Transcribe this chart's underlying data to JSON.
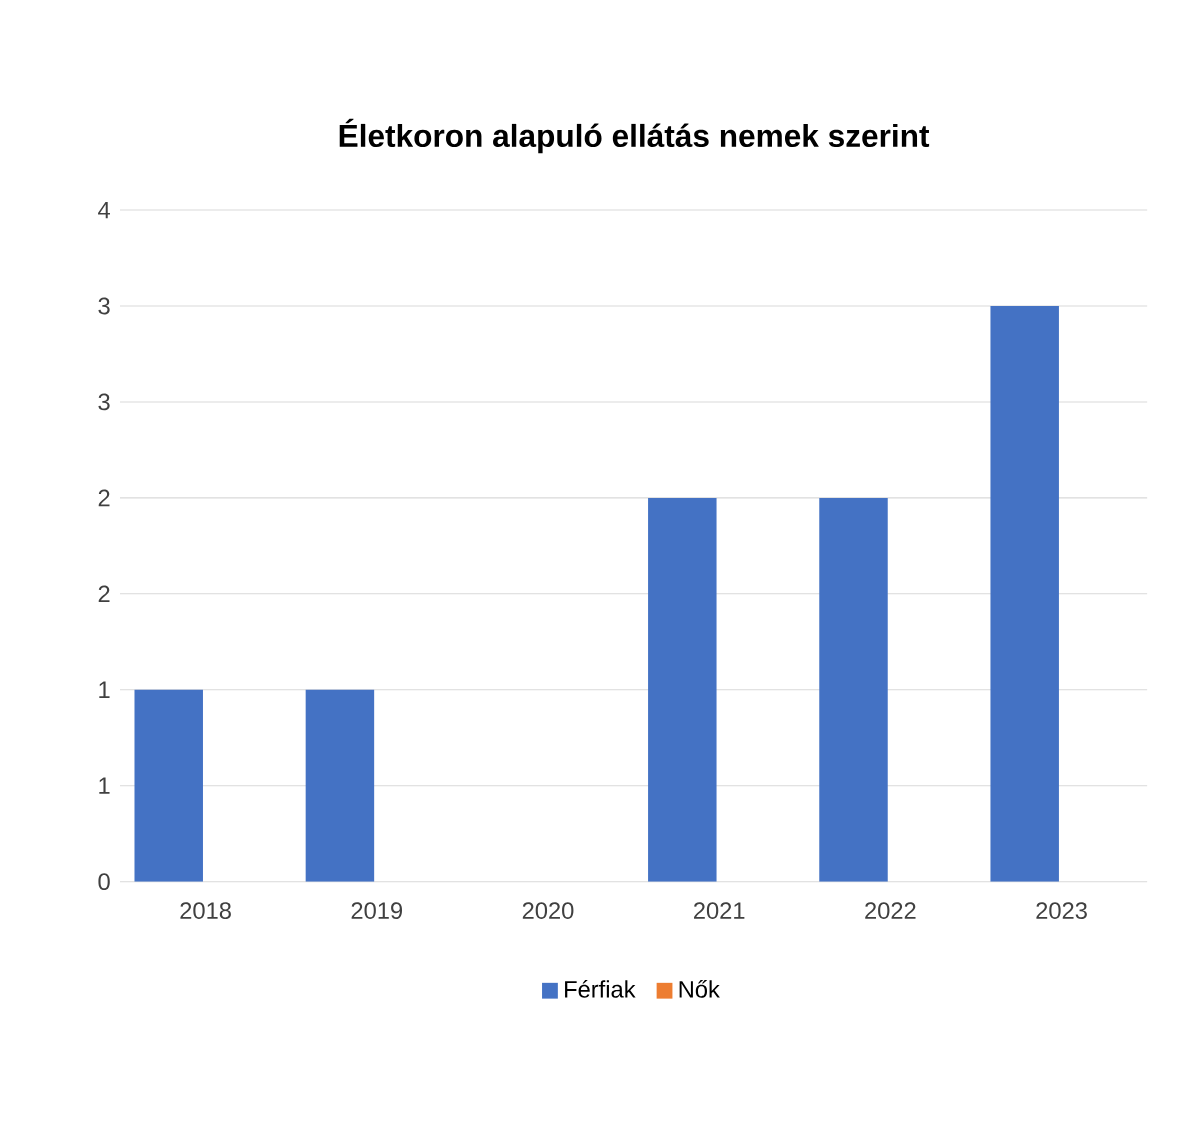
{
  "chart_data": {
    "type": "bar",
    "title": "Életkoron alapuló ellátás nemek szerint",
    "categories": [
      "2018",
      "2019",
      "2020",
      "2021",
      "2022",
      "2023"
    ],
    "series": [
      {
        "name": "Férfiak",
        "color": "#4472c4",
        "values": [
          1,
          1,
          0,
          2,
          2,
          3
        ]
      },
      {
        "name": "Nők",
        "color": "#ed7d31",
        "values": [
          0,
          0,
          0,
          0,
          0,
          0
        ]
      }
    ],
    "ylim": [
      0,
      3.5
    ],
    "yticks": [
      0,
      {
        "value": 0.5,
        "label": "1"
      },
      1,
      {
        "value": 1.5,
        "label": "2"
      },
      2,
      {
        "value": 2.5,
        "label": "3"
      },
      3,
      {
        "value": 3.5,
        "label": "4"
      }
    ],
    "grid": "y",
    "legend": "bottom"
  }
}
